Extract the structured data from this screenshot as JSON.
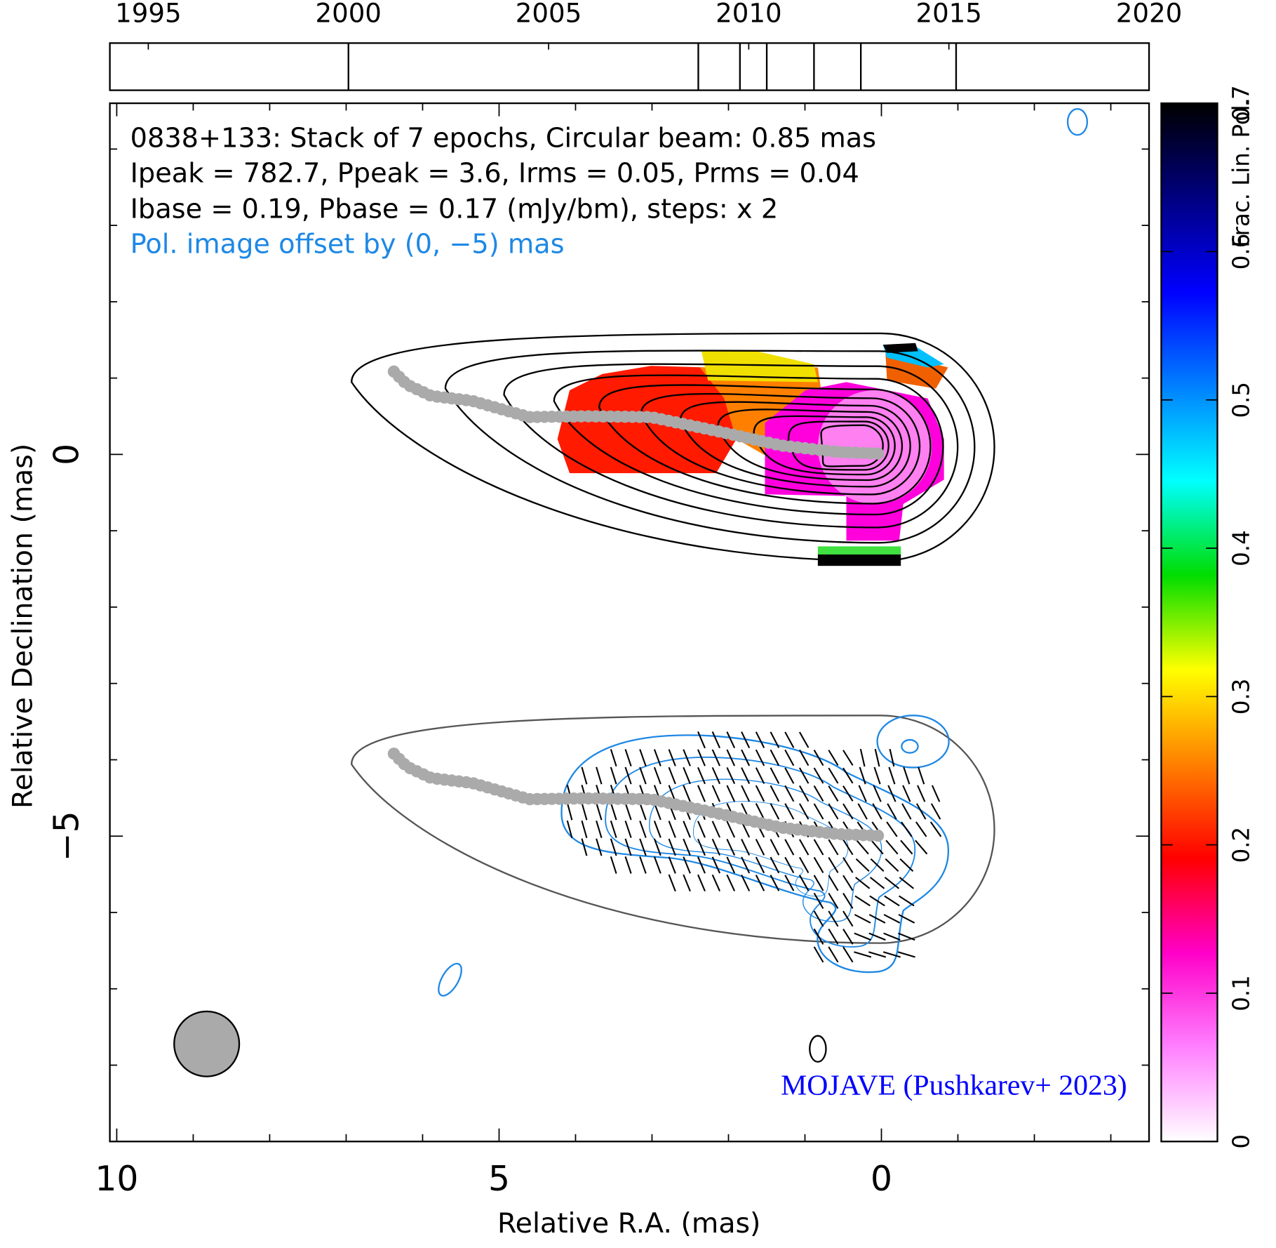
{
  "chart_data": {
    "type": "map",
    "title": "0838+133: Stack of 7 epochs, Circular beam: 0.85 mas",
    "annotations": [
      "Ipeak = 782.7, Ppeak = 3.6, Irms = 0.05, Prms = 0.04",
      "Ibase = 0.19, Pbase = 0.17 (mJy/bm), steps: x 2",
      "Pol. image offset by (0, −5) mas"
    ],
    "credit": "MOJAVE (Pushkarev+ 2023)",
    "x_label": "Relative R.A. (mas)",
    "y_label": "Relative Declination (mas)",
    "xlim": [
      10.09,
      -3.5
    ],
    "xticks": [
      10,
      5,
      0
    ],
    "xminor_ticks": [
      9,
      8,
      7,
      6,
      4,
      3,
      2,
      1,
      -1,
      -2,
      -3
    ],
    "ylim": [
      -9,
      4.6
    ],
    "yticks": [
      0,
      {
        "value": -5,
        "label": "−5"
      }
    ],
    "yminor_ticks": [
      4,
      3,
      2,
      1,
      -1,
      -2,
      -3,
      -4,
      -6,
      -7,
      -8
    ],
    "colorbar": {
      "label": "Frac. Lin. Pol.",
      "lim": [
        0,
        0.7
      ],
      "ticks": [
        0,
        0.1,
        0.2,
        0.3,
        0.4,
        0.5,
        0.6,
        0.7
      ],
      "colors": [
        "#ffffff",
        "#ff80ff",
        "#ff00c8",
        "#ff0000",
        "#ff8000",
        "#ffff00",
        "#00dd00",
        "#00ffff",
        "#0080ff",
        "#0000ff",
        "#000080",
        "#000000"
      ]
    },
    "timeline": {
      "xlim": [
        1994.04,
        2020
      ],
      "xticks": [
        1995,
        2000,
        2005,
        2010,
        2015,
        2020
      ],
      "epochs": [
        2000.0,
        2008.74,
        2009.78,
        2010.45,
        2011.63,
        2012.8,
        2015.18
      ]
    }
  }
}
